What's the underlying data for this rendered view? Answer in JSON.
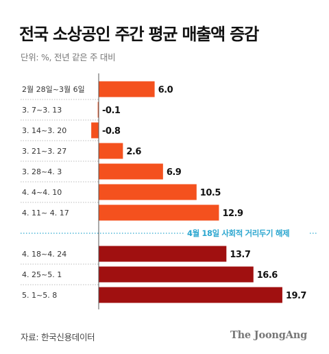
{
  "header": {
    "title": "전국 소상공인 주간 평균 매출액 증감",
    "unit": "단위: %, 전년 같은 주 대비"
  },
  "footer": {
    "source": "자료: 한국신용데이터",
    "brand": "The JoongAng"
  },
  "colors": {
    "before": "#f4511e",
    "after": "#a01010",
    "annotation": "#2aa6cf",
    "separator": "#bbbbbb",
    "axis": "#555555"
  },
  "chart_data": {
    "type": "bar",
    "orientation": "horizontal",
    "title": "전국 소상공인 주간 평균 매출액 증감",
    "categories": [
      "2월 28일~3월 6일",
      "3. 7~3. 13",
      "3. 14~3. 20",
      "3. 21~3. 27",
      "3. 28~4. 3",
      "4. 4~4. 10",
      "4. 11~ 4. 17",
      "4. 18~4. 24",
      "4. 25~5. 1",
      "5. 1~5. 8"
    ],
    "values": [
      6.0,
      -0.1,
      -0.8,
      2.6,
      6.9,
      10.5,
      12.9,
      13.7,
      16.6,
      19.7
    ],
    "value_labels": [
      "6.0",
      "-0.1",
      "-0.8",
      "2.6",
      "6.9",
      "10.5",
      "12.9",
      "13.7",
      "16.6",
      "19.7"
    ],
    "annotation": {
      "text": "4월 18일 사회적 거리두기 해제",
      "after_category": "4. 11~ 4. 17"
    },
    "xlim": [
      -1,
      20
    ],
    "grid": false,
    "legend": "none"
  }
}
